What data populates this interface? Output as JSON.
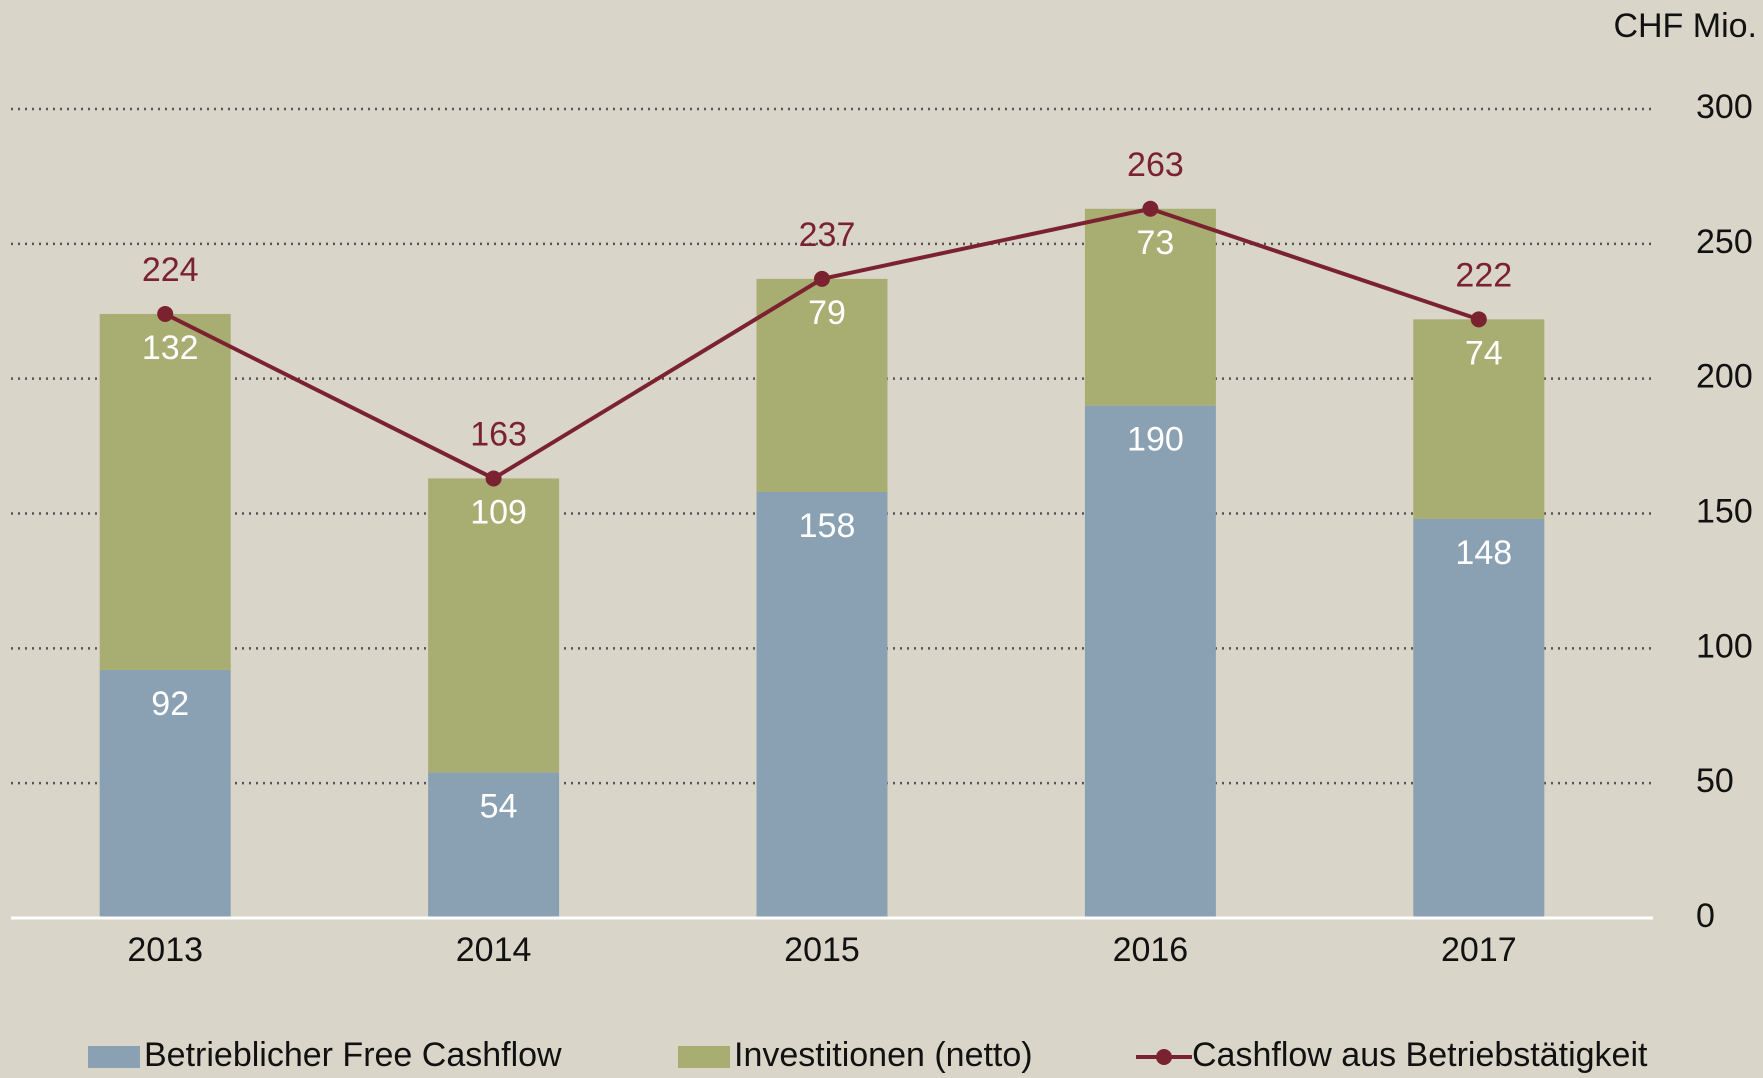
{
  "chart_data": {
    "type": "bar",
    "stacked": true,
    "unit_label": "CHF Mio.",
    "categories": [
      "2013",
      "2014",
      "2015",
      "2016",
      "2017"
    ],
    "series": [
      {
        "name": "Betrieblicher Free Cashflow",
        "color": "#8aa1b4",
        "type": "bar",
        "values": [
          92,
          54,
          158,
          190,
          148
        ]
      },
      {
        "name": "Investitionen (netto)",
        "color": "#a8ad72",
        "type": "bar",
        "values": [
          132,
          109,
          79,
          73,
          74
        ]
      },
      {
        "name": "Cashflow aus Betriebstätigkeit",
        "color": "#7b2231",
        "type": "line",
        "values": [
          224,
          163,
          237,
          263,
          222
        ]
      }
    ],
    "ylim": [
      0,
      300
    ],
    "yticks": [
      0,
      50,
      100,
      150,
      200,
      250,
      300
    ],
    "grid": true,
    "y_axis_side": "right",
    "legend": "bottom"
  }
}
